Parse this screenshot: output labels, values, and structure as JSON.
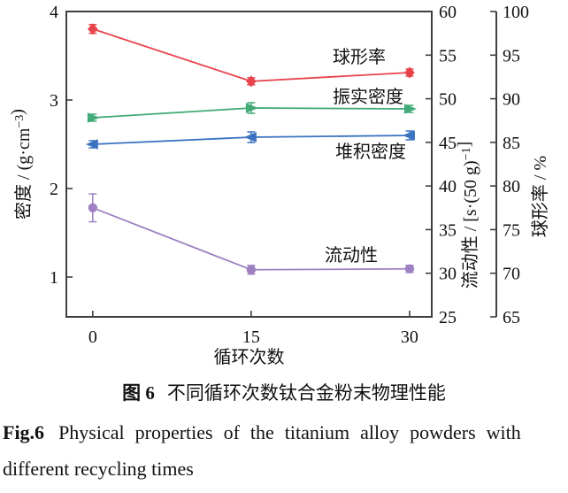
{
  "figure": {
    "caption_cn_prefix": "图 6",
    "caption_cn_text": "不同循环次数钛合金粉末物理性能",
    "caption_en_prefix": "Fig.6",
    "caption_en_text": "Physical properties of the titanium alloy powders with",
    "caption_en_line2": "different recycling times"
  },
  "chart_data": {
    "type": "line",
    "x": [
      0,
      15,
      30
    ],
    "x_ticks": [
      "0",
      "15",
      "30"
    ],
    "xlabel": "循环次数",
    "xlim": [
      -2.5,
      32.1
    ],
    "grid": false,
    "background": "#ffffff",
    "frame_color": "#3f3f3f",
    "text_color": "#111111",
    "axes": {
      "left": {
        "title_parts": [
          {
            "t": "密度 / (g·cm"
          },
          {
            "t": "−3",
            "sup": true
          },
          {
            "t": ")"
          }
        ],
        "ticks": [
          1,
          2,
          3,
          4
        ],
        "range": [
          0.55,
          4
        ]
      },
      "flow": {
        "title_parts": [
          {
            "t": "流动性 / [s·(50 g)"
          },
          {
            "t": "−1",
            "sup": true
          },
          {
            "t": "]"
          }
        ],
        "ticks": [
          25,
          30,
          35,
          40,
          45,
          50,
          55,
          60
        ],
        "range": [
          25,
          60
        ]
      },
      "sphericity": {
        "title_parts": [
          {
            "t": "球形率 / %"
          }
        ],
        "ticks": [
          65,
          70,
          75,
          80,
          85,
          90,
          95,
          100
        ],
        "range": [
          65,
          100
        ]
      }
    },
    "series": [
      {
        "key": "sphericity",
        "name": "球形率",
        "axis": "sphericity",
        "marker": "diamond",
        "color": "#e8424b",
        "values": [
          98,
          92,
          93
        ],
        "errors": [
          0.5,
          0.4,
          0.4
        ],
        "label_pos": [
          406,
          64
        ]
      },
      {
        "key": "tap-density",
        "name": "振实密度",
        "axis": "left",
        "marker": "triangle-right",
        "color": "#43ab77",
        "values": [
          2.8,
          2.91,
          2.9
        ],
        "errors": [
          0.04,
          0.06,
          0.04
        ],
        "label_pos": [
          416,
          109
        ]
      },
      {
        "key": "bulk-density",
        "name": "堆积密度",
        "axis": "left",
        "marker": "triangle-left",
        "color": "#3b73c1",
        "values": [
          2.5,
          2.58,
          2.6
        ],
        "errors": [
          0.04,
          0.06,
          0.05
        ],
        "label_pos": [
          419,
          171
        ]
      },
      {
        "key": "flowability",
        "name": "流动性",
        "axis": "flow",
        "marker": "circle",
        "color": "#9e80c3",
        "values": [
          37.5,
          30.4,
          30.5
        ],
        "errors": [
          1.6,
          0.5,
          0.4
        ],
        "label_pos": [
          397,
          288
        ]
      }
    ]
  }
}
